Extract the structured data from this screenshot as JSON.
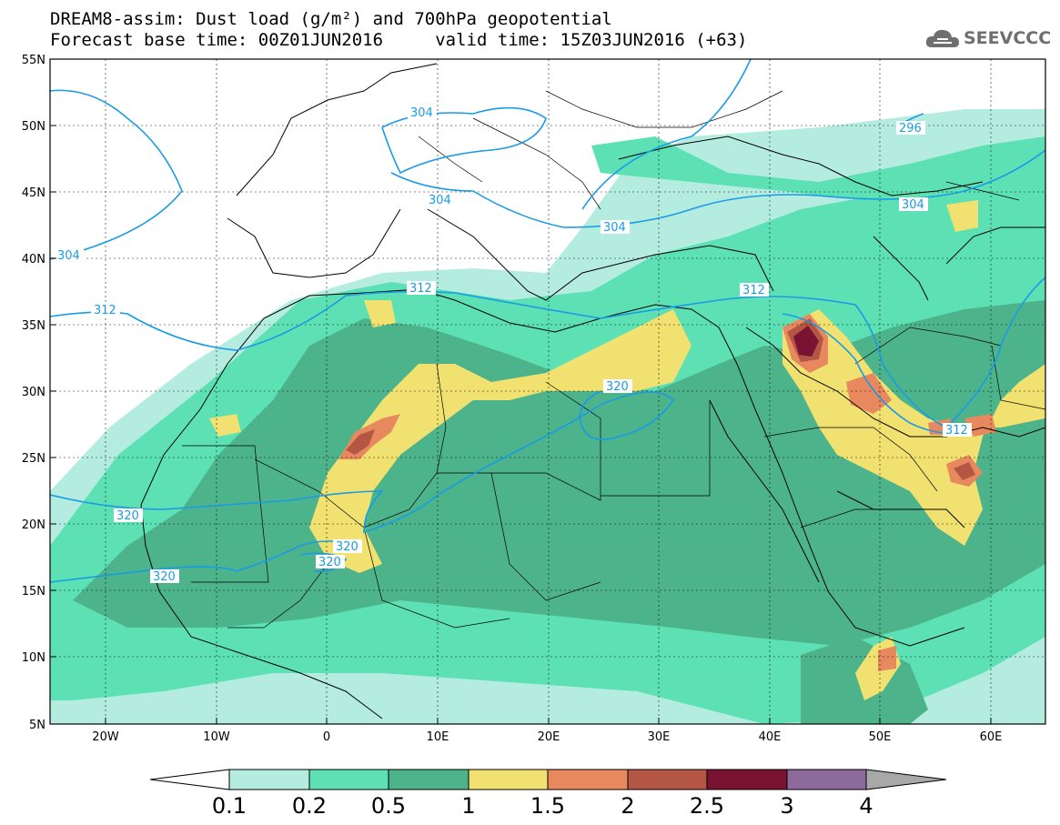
{
  "header": {
    "title_line1": "DREAM8-assim: Dust load (g/m²) and 700hPa geopotential",
    "title_line2": "Forecast base time: 00Z01JUN2016     valid time: 15Z03JUN2016 (+63)",
    "logo_text": "SEEVCCC"
  },
  "map": {
    "lat_labels": [
      "55N",
      "50N",
      "45N",
      "40N",
      "35N",
      "30N",
      "25N",
      "20N",
      "15N",
      "10N",
      "5N"
    ],
    "lon_labels": [
      "20W",
      "10W",
      "0",
      "10E",
      "20E",
      "30E",
      "40E",
      "50E",
      "60E"
    ],
    "contour_labels": [
      {
        "id": "c296",
        "text": "296"
      },
      {
        "id": "c304a",
        "text": "304"
      },
      {
        "id": "c304b",
        "text": "304"
      },
      {
        "id": "c304c",
        "text": "304"
      },
      {
        "id": "c304d",
        "text": "304"
      },
      {
        "id": "c304e",
        "text": "304"
      },
      {
        "id": "c312a",
        "text": "312"
      },
      {
        "id": "c312b",
        "text": "312"
      },
      {
        "id": "c312c",
        "text": "312"
      },
      {
        "id": "c312d",
        "text": "312"
      },
      {
        "id": "c320a",
        "text": "320"
      },
      {
        "id": "c320b",
        "text": "320"
      },
      {
        "id": "c320c",
        "text": "320"
      },
      {
        "id": "c320d",
        "text": "320"
      },
      {
        "id": "c320e",
        "text": "320"
      }
    ]
  },
  "legend": {
    "labels": [
      "0.1",
      "0.2",
      "0.5",
      "1",
      "1.5",
      "2",
      "2.5",
      "3",
      "4"
    ],
    "colors": [
      "#ffffff",
      "#b4ede0",
      "#5ce0b4",
      "#4db38a",
      "#f0e170",
      "#e8885f",
      "#b35744",
      "#7a1231",
      "#8c6a9c",
      "#a8a8a8"
    ]
  },
  "colors": {
    "contour": "#1a9be6",
    "land_border": "#000000"
  }
}
